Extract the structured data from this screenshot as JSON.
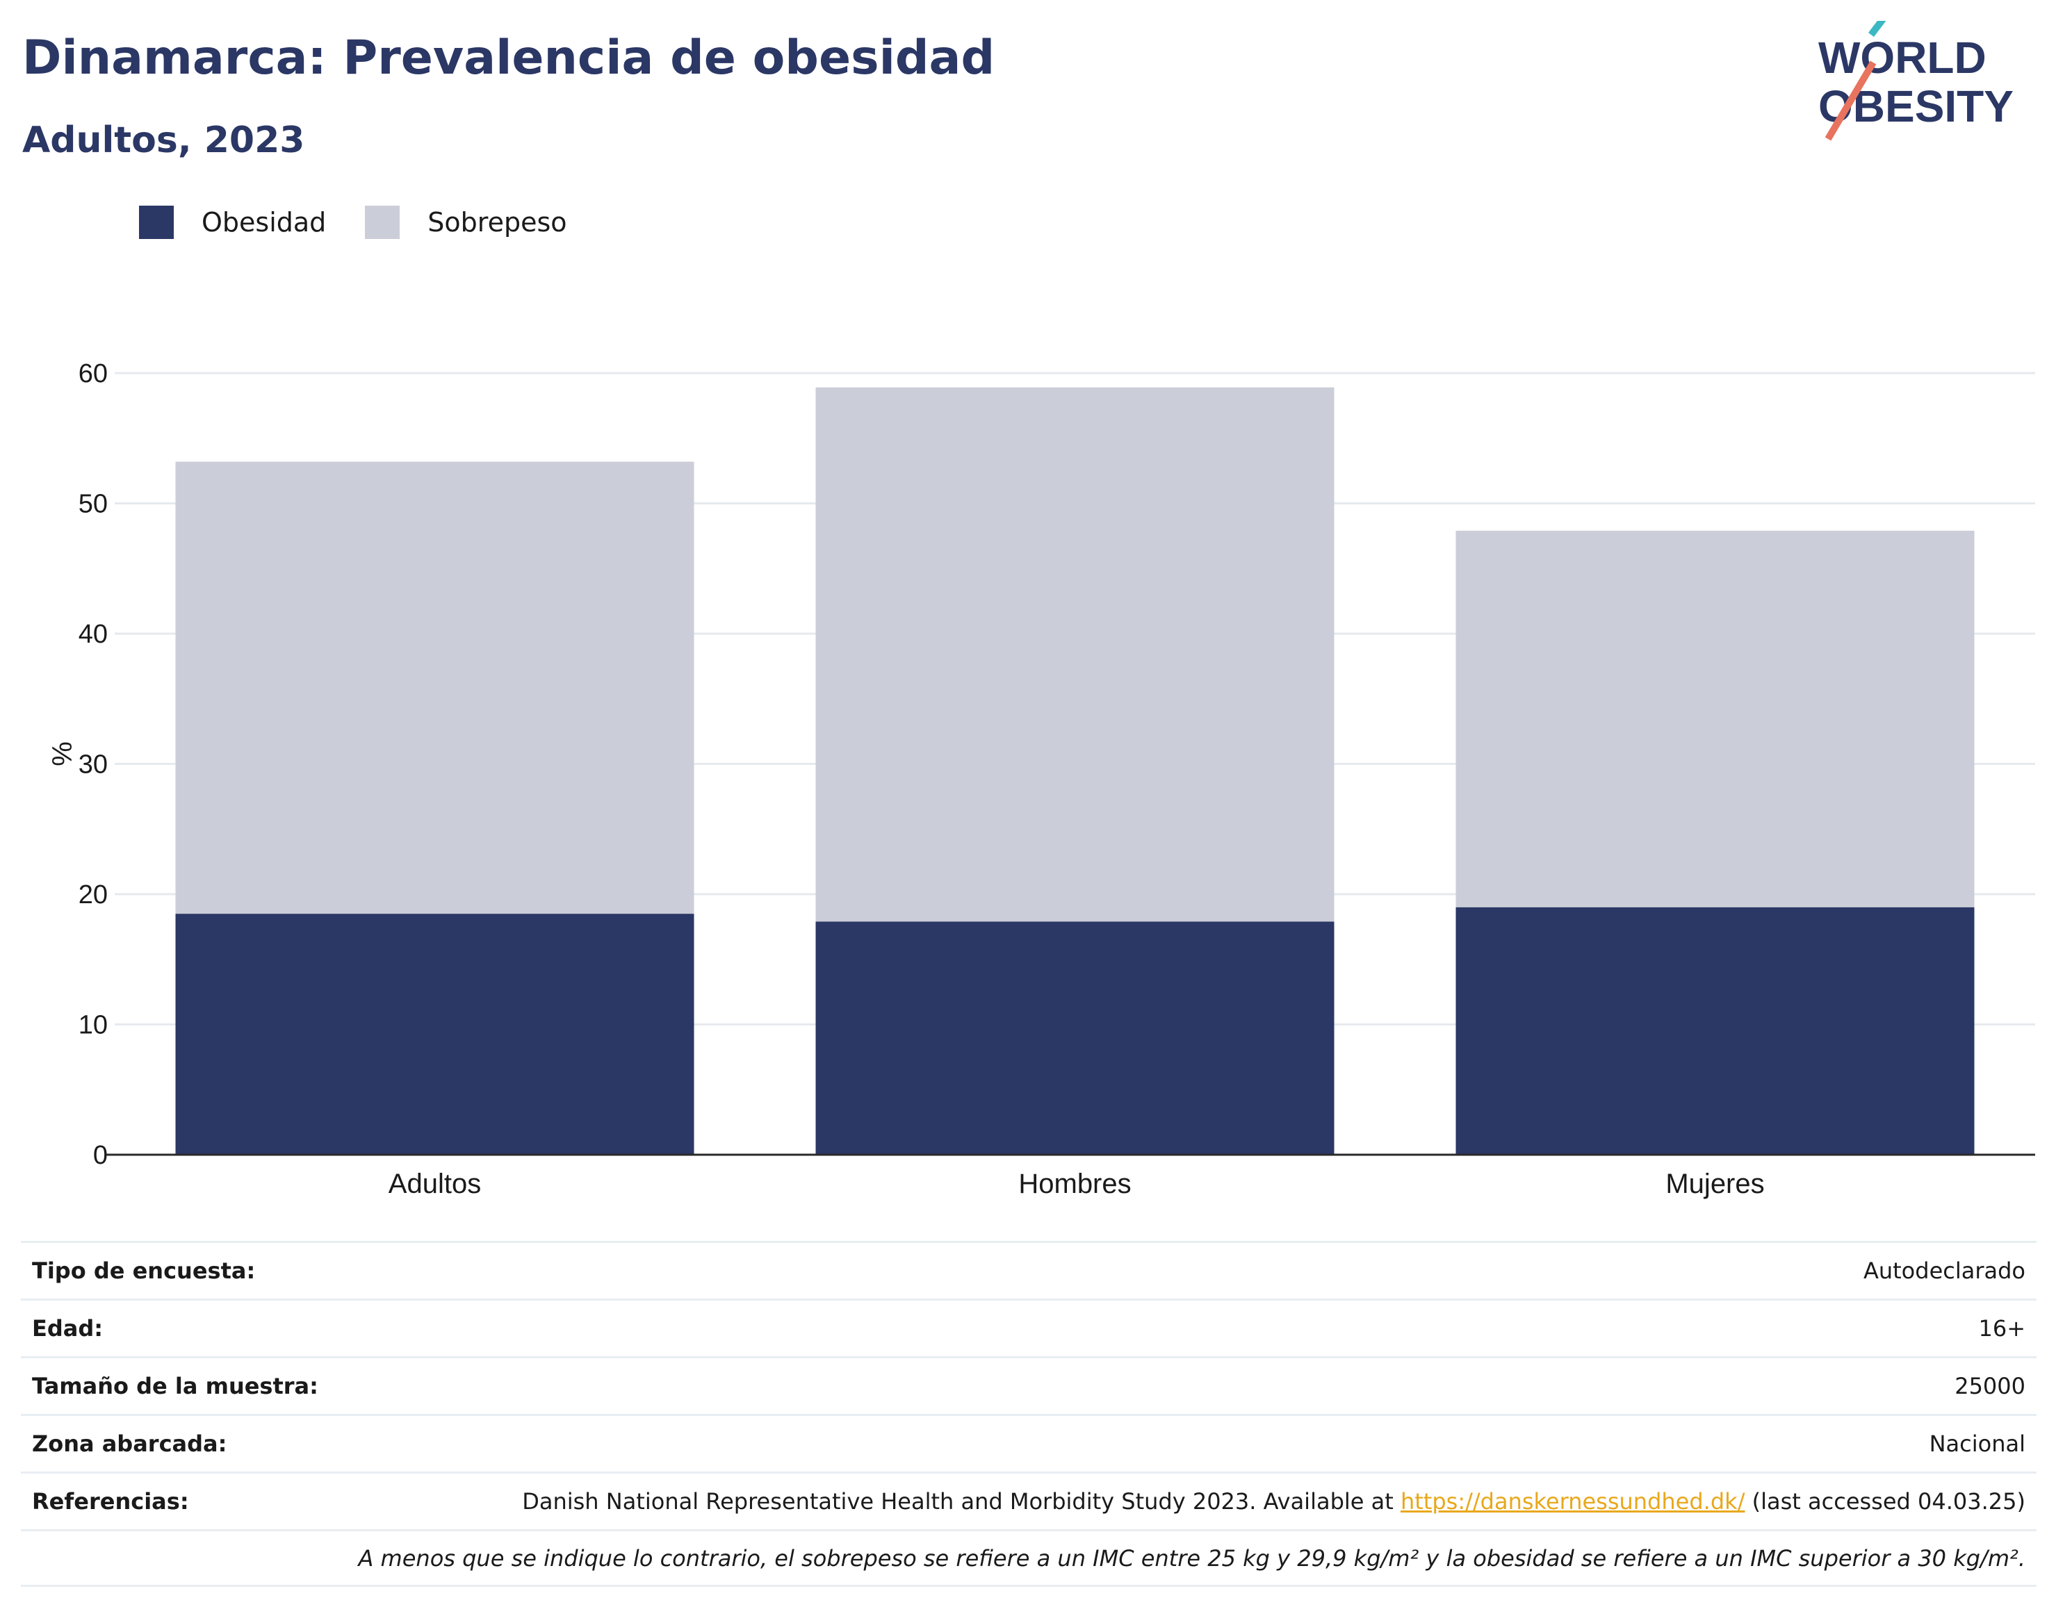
{
  "header": {
    "title": "Dinamarca: Prevalencia de obesidad",
    "subtitle": "Adultos, 2023"
  },
  "logo": {
    "line1": "WORLD",
    "line2": "OBESITY"
  },
  "colors": {
    "obesity": "#2b3765",
    "overweight": "#cbcdd8",
    "text_dark": "#2b3765",
    "link": "#e8a81c",
    "logo_teal": "#3bb8c3",
    "logo_coral": "#e8735e"
  },
  "chart_data": {
    "type": "bar",
    "stacked": true,
    "categories": [
      "Adultos",
      "Hombres",
      "Mujeres"
    ],
    "series": [
      {
        "name": "Obesidad",
        "values": [
          18.5,
          17.9,
          19.0
        ]
      },
      {
        "name": "Sobrepeso",
        "values": [
          34.7,
          41.0,
          28.9
        ]
      }
    ],
    "ylabel": "%",
    "xlabel": "",
    "ylim": [
      0,
      60
    ],
    "yticks": [
      0,
      10,
      20,
      30,
      40,
      50,
      60
    ],
    "grid": true,
    "legend_position": "top-left"
  },
  "info": {
    "survey_type_label": "Tipo de encuesta:",
    "survey_type_value": "Autodeclarado",
    "age_label": "Edad:",
    "age_value": "16+",
    "sample_label": "Tamaño de la muestra:",
    "sample_value": "25000",
    "area_label": "Zona abarcada:",
    "area_value": "Nacional",
    "refs_label": "Referencias:",
    "refs_prefix": "Danish National Representative Health and Morbidity Study 2023. Available at ",
    "refs_link": "https://danskernessundhed.dk/",
    "refs_suffix": " (last accessed 04.03.25)",
    "note": "A menos que se indique lo contrario, el sobrepeso se refiere a un IMC entre 25 kg y 29,9 kg/m² y la obesidad se refiere a un IMC superior a 30 kg/m²."
  }
}
